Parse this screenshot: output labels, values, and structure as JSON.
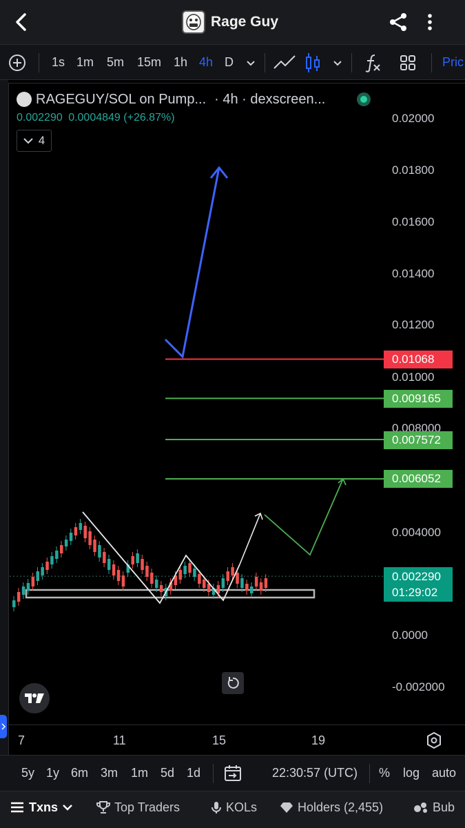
{
  "header": {
    "title": "Rage Guy"
  },
  "toolbar": {
    "intervals": [
      "1s",
      "1m",
      "5m",
      "15m",
      "1h",
      "4h",
      "D"
    ],
    "active_interval": "4h",
    "cut_label": "Pric"
  },
  "chart_header": {
    "pair": "RAGEGUY/SOL on Pump...",
    "interval_source": "· 4h · dexscreen...",
    "price": "0.002290",
    "change": "0.0004849 (+26.87%)",
    "indicator_count": "4"
  },
  "price_axis": {
    "ticks": [
      "0.02000",
      "0.01800",
      "0.01600",
      "0.01400",
      "0.01200",
      "0.01000",
      "0.008000",
      "0.004000",
      "0.0000",
      "-0.002000"
    ]
  },
  "price_tags": {
    "target_red": "0.01068",
    "target_green_1": "0.009165",
    "target_green_2": "0.007572",
    "target_green_3": "0.006052",
    "current_price": "0.002290",
    "countdown": "01:29:02"
  },
  "x_axis": {
    "labels": [
      "7",
      "11",
      "15",
      "19"
    ]
  },
  "range_bar": {
    "ranges": [
      "5y",
      "1y",
      "6m",
      "3m",
      "1m",
      "5d",
      "1d"
    ],
    "time": "22:30:57 (UTC)",
    "percent": "%",
    "log": "log",
    "auto": "auto"
  },
  "bottom_nav": {
    "txns": "Txns",
    "top_traders": "Top Traders",
    "kols": "KOLs",
    "holders": "Holders (2,455)",
    "cut_label": "Bub"
  },
  "colors": {
    "up": "#26a69a",
    "down": "#ef5350",
    "accent": "#2962ff",
    "tag_red": "#f23645",
    "tag_green": "#4caf50",
    "tag_current": "#089981"
  },
  "chart_data": {
    "type": "candlestick",
    "x_ticks": [
      "7",
      "11",
      "15",
      "19"
    ],
    "y_ticks": [
      0.02,
      0.018,
      0.016,
      0.014,
      0.012,
      0.01,
      0.008,
      0.004,
      0.0,
      -0.002
    ],
    "price_levels": [
      {
        "label": "0.01068",
        "value": 0.01068,
        "color": "red"
      },
      {
        "label": "0.009165",
        "value": 0.009165,
        "color": "green"
      },
      {
        "label": "0.007572",
        "value": 0.007572,
        "color": "green"
      },
      {
        "label": "0.006052",
        "value": 0.006052,
        "color": "green"
      }
    ],
    "last_price": 0.00229
  }
}
